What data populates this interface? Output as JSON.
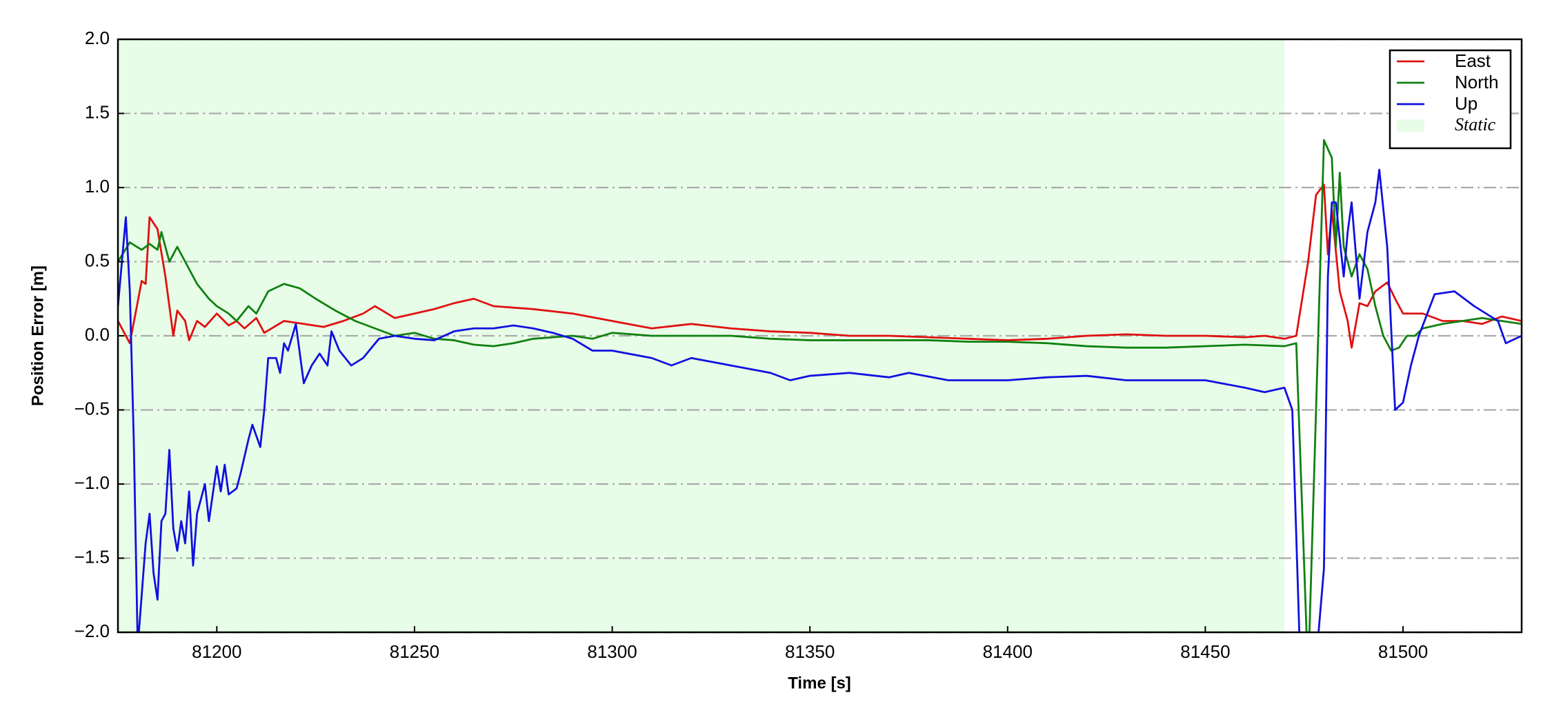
{
  "chart_data": {
    "type": "line",
    "xlabel": "Time [s]",
    "ylabel": "Position Error [m]",
    "xlim": [
      81175,
      81530
    ],
    "ylim": [
      -2,
      2
    ],
    "xticks": [
      81200,
      81250,
      81300,
      81350,
      81400,
      81450,
      81500
    ],
    "yticks": [
      {
        "value": -2,
        "label": "−2.0"
      },
      {
        "value": -1.5,
        "label": "−1.5"
      },
      {
        "value": -1,
        "label": "−1.0"
      },
      {
        "value": -0.5,
        "label": "−0.5"
      },
      {
        "value": 0,
        "label": "0.0"
      },
      {
        "value": 0.5,
        "label": "0.5"
      },
      {
        "value": 1,
        "label": "1.0"
      },
      {
        "value": 1.5,
        "label": "1.5"
      },
      {
        "value": 2,
        "label": "2.0"
      }
    ],
    "grid": "y",
    "legend_loc": "upper right",
    "shaded_regions": [
      {
        "name": "Static",
        "color": "#e8fde8",
        "x": [
          81175,
          81470
        ]
      }
    ],
    "series": [
      {
        "name": "East",
        "color": "#e01010",
        "x": [
          81175,
          81178,
          81181,
          81182,
          81183,
          81185,
          81187,
          81189,
          81190,
          81192,
          81193,
          81195,
          81197,
          81200,
          81203,
          81205,
          81207,
          81210,
          81212,
          81217,
          81222,
          81227,
          81232,
          81237,
          81240,
          81245,
          81250,
          81255,
          81260,
          81265,
          81270,
          81280,
          81290,
          81300,
          81310,
          81320,
          81330,
          81340,
          81350,
          81360,
          81370,
          81380,
          81390,
          81400,
          81410,
          81420,
          81430,
          81440,
          81450,
          81460,
          81465,
          81470,
          81473,
          81476,
          81478,
          81480,
          81481,
          81482,
          81484,
          81486,
          81487,
          81489,
          81491,
          81493,
          81496,
          81498,
          81500,
          81505,
          81510,
          81515,
          81520,
          81525,
          81530
        ],
        "values": [
          0.1,
          -0.05,
          0.37,
          0.35,
          0.8,
          0.72,
          0.4,
          0.0,
          0.17,
          0.1,
          -0.03,
          0.1,
          0.06,
          0.15,
          0.07,
          0.1,
          0.05,
          0.12,
          0.02,
          0.1,
          0.08,
          0.06,
          0.1,
          0.15,
          0.2,
          0.12,
          0.15,
          0.18,
          0.22,
          0.25,
          0.2,
          0.18,
          0.15,
          0.1,
          0.05,
          0.08,
          0.05,
          0.03,
          0.02,
          0.0,
          0.0,
          -0.01,
          -0.02,
          -0.03,
          -0.02,
          0.0,
          0.01,
          0.0,
          0.0,
          -0.01,
          0.0,
          -0.02,
          0.0,
          0.5,
          0.95,
          1.02,
          0.55,
          0.85,
          0.3,
          0.1,
          -0.08,
          0.22,
          0.2,
          0.3,
          0.36,
          0.25,
          0.15,
          0.15,
          0.1,
          0.1,
          0.08,
          0.13,
          0.1
        ]
      },
      {
        "name": "North",
        "color": "#108010",
        "x": [
          81175,
          81178,
          81181,
          81183,
          81185,
          81186,
          81188,
          81190,
          81193,
          81195,
          81198,
          81200,
          81203,
          81205,
          81208,
          81210,
          81213,
          81217,
          81221,
          81225,
          81230,
          81235,
          81240,
          81245,
          81250,
          81255,
          81260,
          81265,
          81270,
          81275,
          81280,
          81290,
          81295,
          81300,
          81310,
          81320,
          81330,
          81340,
          81350,
          81360,
          81370,
          81380,
          81390,
          81400,
          81410,
          81420,
          81430,
          81440,
          81450,
          81460,
          81470,
          81473,
          81476,
          81478,
          81480,
          81482,
          81483,
          81484,
          81485,
          81487,
          81489,
          81491,
          81493,
          81495,
          81497,
          81499,
          81501,
          81503,
          81505,
          81510,
          81515,
          81520,
          81525,
          81530
        ],
        "values": [
          0.5,
          0.63,
          0.58,
          0.62,
          0.58,
          0.7,
          0.5,
          0.6,
          0.45,
          0.35,
          0.25,
          0.2,
          0.15,
          0.1,
          0.2,
          0.15,
          0.3,
          0.35,
          0.32,
          0.25,
          0.17,
          0.1,
          0.05,
          0.0,
          0.02,
          -0.02,
          -0.03,
          -0.06,
          -0.07,
          -0.05,
          -0.02,
          0.0,
          -0.02,
          0.02,
          0.0,
          0.0,
          0.0,
          -0.02,
          -0.03,
          -0.03,
          -0.03,
          -0.03,
          -0.04,
          -0.04,
          -0.05,
          -0.07,
          -0.08,
          -0.08,
          -0.07,
          -0.06,
          -0.07,
          -0.05,
          -2.3,
          -0.5,
          1.32,
          1.2,
          0.6,
          1.1,
          0.6,
          0.4,
          0.55,
          0.45,
          0.2,
          0.0,
          -0.1,
          -0.08,
          0.0,
          0.0,
          0.05,
          0.08,
          0.1,
          0.12,
          0.1,
          0.08
        ]
      },
      {
        "name": "Up",
        "color": "#1010e0",
        "x": [
          81175,
          81177,
          81178,
          81179,
          81180,
          81182,
          81183,
          81184,
          81185,
          81186,
          81187,
          81188,
          81189,
          81190,
          81191,
          81192,
          81193,
          81194,
          81195,
          81197,
          81198,
          81200,
          81201,
          81202,
          81203,
          81205,
          81206,
          81208,
          81209,
          81211,
          81212,
          81213,
          81215,
          81216,
          81217,
          81218,
          81220,
          81222,
          81224,
          81226,
          81228,
          81229,
          81231,
          81234,
          81237,
          81241,
          81245,
          81250,
          81255,
          81260,
          81265,
          81270,
          81275,
          81280,
          81285,
          81290,
          81295,
          81300,
          81310,
          81315,
          81320,
          81330,
          81340,
          81345,
          81350,
          81360,
          81370,
          81375,
          81385,
          81400,
          81410,
          81420,
          81430,
          81440,
          81450,
          81460,
          81465,
          81470,
          81472,
          81474,
          81478,
          81480,
          81481,
          81482,
          81483,
          81485,
          81486,
          81487,
          81489,
          81491,
          81493,
          81494,
          81496,
          81498,
          81500,
          81502,
          81504,
          81508,
          81513,
          81518,
          81521,
          81524,
          81526,
          81530
        ],
        "values": [
          0.2,
          0.8,
          0.3,
          -0.7,
          -2.1,
          -1.4,
          -1.2,
          -1.6,
          -1.78,
          -1.25,
          -1.2,
          -0.77,
          -1.3,
          -1.45,
          -1.25,
          -1.4,
          -1.05,
          -1.55,
          -1.2,
          -1.0,
          -1.25,
          -0.88,
          -1.05,
          -0.87,
          -1.07,
          -1.03,
          -0.93,
          -0.7,
          -0.6,
          -0.75,
          -0.5,
          -0.15,
          -0.15,
          -0.25,
          -0.05,
          -0.1,
          0.08,
          -0.32,
          -0.2,
          -0.12,
          -0.2,
          0.03,
          -0.1,
          -0.2,
          -0.15,
          -0.02,
          0.0,
          -0.02,
          -0.03,
          0.03,
          0.05,
          0.05,
          0.07,
          0.05,
          0.02,
          -0.02,
          -0.1,
          -0.1,
          -0.15,
          -0.2,
          -0.15,
          -0.2,
          -0.25,
          -0.3,
          -0.27,
          -0.25,
          -0.28,
          -0.25,
          -0.3,
          -0.3,
          -0.28,
          -0.27,
          -0.3,
          -0.3,
          -0.3,
          -0.35,
          -0.38,
          -0.35,
          -0.5,
          -2.2,
          -2.2,
          -1.57,
          0.4,
          0.9,
          0.9,
          0.4,
          0.7,
          0.9,
          0.25,
          0.7,
          0.9,
          1.12,
          0.6,
          -0.5,
          -0.45,
          -0.2,
          0.0,
          0.28,
          0.3,
          0.2,
          0.15,
          0.1,
          -0.05,
          0.0
        ]
      }
    ]
  }
}
